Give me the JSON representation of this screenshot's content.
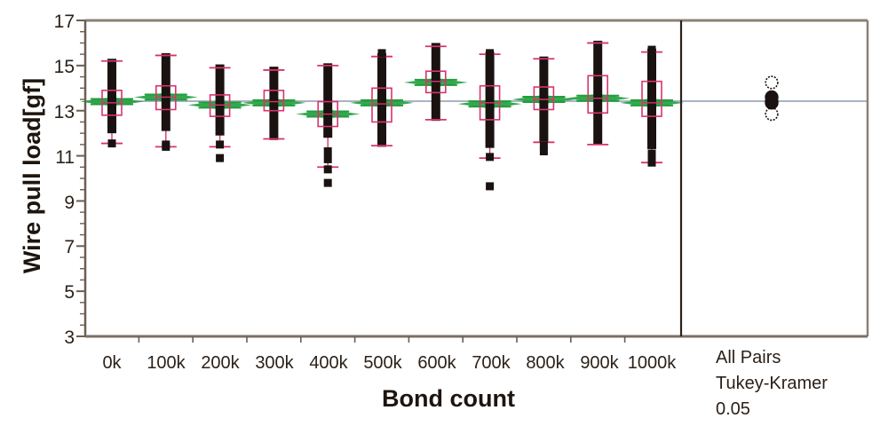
{
  "chart_data": {
    "type": "boxplot",
    "title": "",
    "xlabel": "Bond count",
    "ylabel": "Wire pull load[gf]",
    "ylim": [
      3,
      17
    ],
    "yticks": [
      3,
      5,
      7,
      9,
      11,
      13,
      15,
      17
    ],
    "grid": false,
    "grand_mean": 13.42,
    "reading_precision_note": "Values read off pixel positions at ~25 px per gf; expect roughly +/-0.15 gf error. Box edges, whisker ends and outliers were measured from zoomed crops. Medians were NOT measured and are set to the box midpoint; means marked estimated were not directly read for every group.",
    "median_source": "estimated_box_midpoint",
    "mean_source": "estimated",
    "categories": [
      "0k",
      "100k",
      "200k",
      "300k",
      "400k",
      "500k",
      "600k",
      "700k",
      "800k",
      "900k",
      "1000k"
    ],
    "groups": [
      {
        "label": "0k",
        "data_min": 12.0,
        "data_max": 15.3,
        "whisker_low": 11.55,
        "q1": 12.8,
        "median": 13.35,
        "q3": 13.9,
        "whisker_high": 15.2,
        "mean": 13.4,
        "outliers": [
          11.55
        ]
      },
      {
        "label": "100k",
        "data_min": 12.1,
        "data_max": 15.55,
        "whisker_low": 11.4,
        "q1": 13.05,
        "median": 13.6,
        "q3": 14.1,
        "whisker_high": 15.45,
        "mean": 13.6,
        "outliers": [
          11.5,
          11.4
        ]
      },
      {
        "label": "200k",
        "data_min": 11.9,
        "data_max": 15.05,
        "whisker_low": 11.4,
        "q1": 12.75,
        "median": 13.25,
        "q3": 13.7,
        "whisker_high": 14.9,
        "mean": 13.25,
        "outliers": [
          11.5,
          10.9
        ]
      },
      {
        "label": "300k",
        "data_min": 11.7,
        "data_max": 14.95,
        "whisker_low": 11.75,
        "q1": 13.0,
        "median": 13.4,
        "q3": 13.9,
        "whisker_high": 14.8,
        "mean": 13.35,
        "outliers": []
      },
      {
        "label": "400k",
        "data_min": 11.8,
        "data_max": 15.1,
        "whisker_low": 10.5,
        "q1": 12.3,
        "median": 12.85,
        "q3": 13.4,
        "whisker_high": 15.0,
        "mean": 12.85,
        "outliers": [
          11.2,
          10.85,
          10.4,
          9.8
        ]
      },
      {
        "label": "500k",
        "data_min": 11.4,
        "data_max": 15.55,
        "whisker_low": 11.45,
        "q1": 12.5,
        "median": 13.3,
        "q3": 14.0,
        "whisker_high": 15.4,
        "mean": 13.35,
        "outliers": [
          15.55
        ]
      },
      {
        "label": "600k",
        "data_min": 12.55,
        "data_max": 16.0,
        "whisker_low": 12.6,
        "q1": 13.8,
        "median": 14.3,
        "q3": 14.75,
        "whisker_high": 15.85,
        "mean": 14.25,
        "outliers": []
      },
      {
        "label": "700k",
        "data_min": 11.35,
        "data_max": 15.6,
        "whisker_low": 10.9,
        "q1": 12.6,
        "median": 13.35,
        "q3": 14.1,
        "whisker_high": 15.5,
        "mean": 13.3,
        "outliers": [
          15.55,
          15.25,
          10.95,
          9.65
        ]
      },
      {
        "label": "800k",
        "data_min": 11.6,
        "data_max": 15.4,
        "whisker_low": 11.6,
        "q1": 13.05,
        "median": 13.5,
        "q3": 14.05,
        "whisker_high": 15.3,
        "mean": 13.5,
        "outliers": [
          11.45,
          11.2
        ]
      },
      {
        "label": "900k",
        "data_min": 11.5,
        "data_max": 16.1,
        "whisker_low": 11.5,
        "q1": 12.9,
        "median": 13.55,
        "q3": 14.55,
        "whisker_high": 16.0,
        "mean": 13.55,
        "outliers": []
      },
      {
        "label": "1000k",
        "data_min": 11.3,
        "data_max": 15.75,
        "whisker_low": 10.7,
        "q1": 12.75,
        "median": 13.35,
        "q3": 14.3,
        "whisker_high": 15.6,
        "mean": 13.35,
        "outliers": [
          15.7,
          15.45,
          11.1,
          10.85,
          10.7
        ]
      }
    ],
    "comparison_circles": {
      "label_lines": [
        "All Pairs",
        "Tukey-Kramer",
        "0.05"
      ],
      "circles": [
        {
          "center": 14.25,
          "radius_gf": 0.27,
          "filled": false
        },
        {
          "center": 13.6,
          "radius_gf": 0.27,
          "filled": true
        },
        {
          "center": 13.4,
          "radius_gf": 0.27,
          "filled": true
        },
        {
          "center": 13.35,
          "radius_gf": 0.27,
          "filled": true
        },
        {
          "center": 12.85,
          "radius_gf": 0.27,
          "filled": false
        }
      ]
    },
    "colors": {
      "data_bar": "#1a1210",
      "box": "#d9336e",
      "whisker_cap": "#d9336e",
      "mean_diamond": "#1f9e3c",
      "grand_mean_line": "#a8b4c2",
      "axis": "#6b5e52",
      "divider": "#2b2118"
    }
  },
  "axis": {
    "y_title": "Wire pull load[gf]",
    "x_title": "Bond count",
    "y_tick_labels": [
      "17",
      "15",
      "13",
      "11",
      "9",
      "7",
      "5",
      "3"
    ],
    "x_tick_labels": [
      "0k",
      "100k",
      "200k",
      "300k",
      "400k",
      "500k",
      "600k",
      "700k",
      "800k",
      "900k",
      "1000k"
    ]
  },
  "side_panel": {
    "line1": "All Pairs",
    "line2": "Tukey-Kramer",
    "line3": "0.05"
  }
}
